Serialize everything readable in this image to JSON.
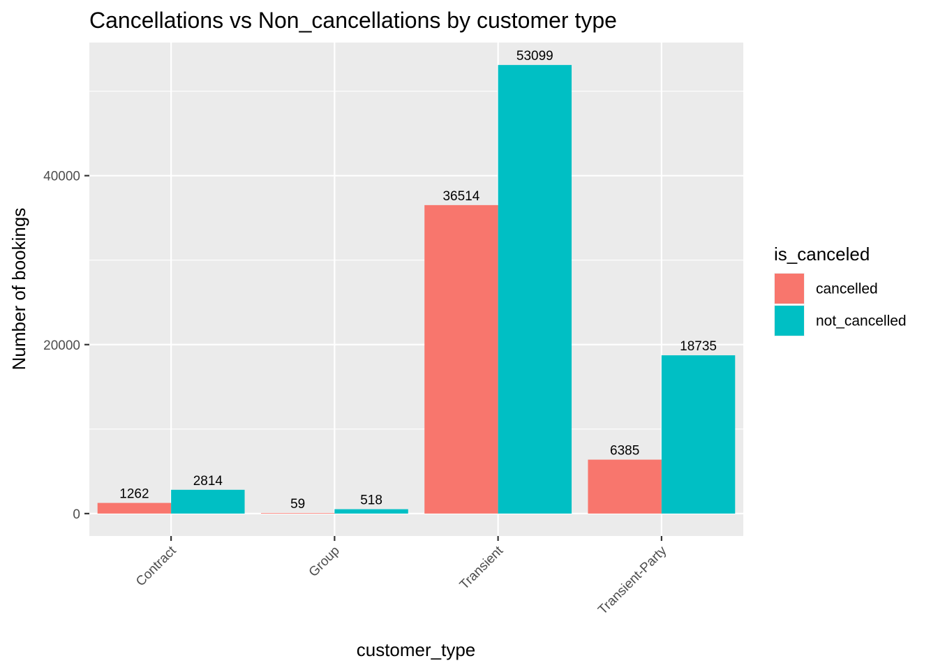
{
  "chart_data": {
    "type": "bar",
    "title": "Cancellations vs Non_cancellations by customer type",
    "xlabel": "customer_type",
    "ylabel": "Number of bookings",
    "categories": [
      "Contract",
      "Group",
      "Transient",
      "Transient-Party"
    ],
    "series": [
      {
        "name": "cancelled",
        "values": [
          1262,
          59,
          36514,
          6385
        ],
        "color": "#F8766D"
      },
      {
        "name": "not_cancelled",
        "values": [
          2814,
          518,
          53099,
          18735
        ],
        "color": "#00BFC4"
      }
    ],
    "ylim": [
      -2655,
      55754
    ],
    "yticks": [
      0,
      20000,
      40000
    ],
    "yticks_minor": [
      10000,
      30000,
      50000
    ],
    "grid": true,
    "legend_title": "is_canceled",
    "legend_position": "right",
    "panel_background": "#EBEBEB",
    "x_tick_rotation_deg": 45
  }
}
